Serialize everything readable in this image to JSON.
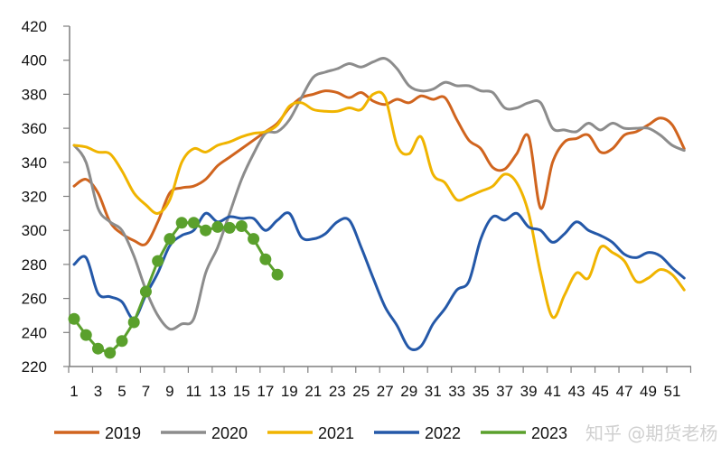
{
  "chart_data": {
    "type": "line",
    "title": "",
    "xlabel": "",
    "ylabel": "",
    "ylim": [
      220,
      420
    ],
    "yticks": [
      220,
      240,
      260,
      280,
      300,
      320,
      340,
      360,
      380,
      400,
      420
    ],
    "x_tick_labels": [
      "1",
      "3",
      "5",
      "7",
      "9",
      "11",
      "13",
      "15",
      "17",
      "19",
      "21",
      "23",
      "25",
      "27",
      "29",
      "31",
      "33",
      "35",
      "37",
      "39",
      "41",
      "43",
      "45",
      "47",
      "49",
      "51"
    ],
    "x_range": [
      1,
      52
    ],
    "grid": false,
    "legend_position": "bottom",
    "series": [
      {
        "name": "2019",
        "color": "#D0641E",
        "markers": false,
        "values": [
          326,
          330,
          322,
          305,
          298,
          294,
          292,
          305,
          322,
          325,
          326,
          330,
          338,
          343,
          348,
          353,
          358,
          363,
          372,
          378,
          380,
          382,
          381,
          378,
          381,
          376,
          374,
          377,
          375,
          379,
          377,
          378,
          365,
          353,
          348,
          337,
          336,
          345,
          355,
          313,
          340,
          352,
          354,
          356,
          346,
          348,
          356,
          358,
          362,
          366,
          362,
          348
        ]
      },
      {
        "name": "2020",
        "color": "#8C8C8C",
        "markers": false,
        "values": [
          350,
          340,
          313,
          305,
          300,
          285,
          265,
          250,
          242,
          245,
          248,
          275,
          290,
          310,
          330,
          345,
          357,
          358,
          365,
          378,
          390,
          393,
          395,
          398,
          396,
          399,
          401,
          395,
          385,
          382,
          383,
          387,
          385,
          385,
          382,
          381,
          372,
          372,
          375,
          375,
          360,
          359,
          358,
          363,
          359,
          363,
          360,
          360,
          360,
          356,
          350,
          347
        ]
      },
      {
        "name": "2021",
        "color": "#F0B400",
        "markers": false,
        "values": [
          350,
          349,
          346,
          345,
          335,
          322,
          315,
          310,
          318,
          340,
          348,
          346,
          350,
          352,
          355,
          357,
          358,
          362,
          373,
          375,
          371,
          370,
          370,
          372,
          371,
          380,
          378,
          350,
          345,
          355,
          333,
          328,
          318,
          320,
          323,
          326,
          333,
          328,
          310,
          275,
          249,
          262,
          275,
          272,
          290,
          287,
          282,
          270,
          272,
          277,
          274,
          265
        ]
      },
      {
        "name": "2022",
        "color": "#2458A8",
        "markers": false,
        "values": [
          280,
          284,
          263,
          261,
          258,
          248,
          262,
          275,
          291,
          297,
          300,
          310,
          305,
          308,
          307,
          307,
          300,
          306,
          310,
          296,
          295,
          298,
          305,
          306,
          290,
          272,
          255,
          244,
          231,
          232,
          245,
          254,
          265,
          270,
          295,
          308,
          306,
          310,
          302,
          300,
          293,
          298,
          305,
          300,
          297,
          293,
          286,
          284,
          287,
          285,
          278,
          272
        ]
      },
      {
        "name": "2023",
        "color": "#5AA02C",
        "markers": true,
        "values": [
          248,
          238.5,
          230.5,
          228,
          235,
          246,
          264,
          282,
          295,
          304.5,
          304.5,
          300,
          302,
          301.5,
          302.5,
          295,
          283,
          274
        ]
      }
    ]
  },
  "watermark": "知乎 @期货老杨"
}
